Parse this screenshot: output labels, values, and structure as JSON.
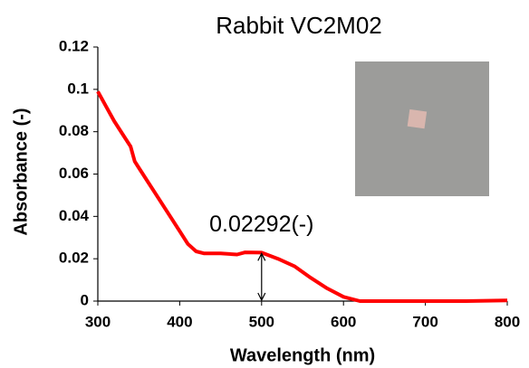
{
  "chart_data": {
    "type": "line",
    "title": "Rabbit VC2M02",
    "x_label": "Wavelength (nm)",
    "y_label": "Absorbance (-)",
    "x": [
      300,
      310,
      320,
      330,
      340,
      345,
      350,
      360,
      370,
      380,
      390,
      400,
      410,
      420,
      430,
      450,
      470,
      480,
      500,
      520,
      540,
      560,
      580,
      600,
      620,
      650,
      700,
      750,
      800
    ],
    "values": [
      0.099,
      0.092,
      0.085,
      0.079,
      0.073,
      0.066,
      0.063,
      0.057,
      0.051,
      0.045,
      0.039,
      0.033,
      0.027,
      0.0235,
      0.0225,
      0.0225,
      0.022,
      0.023,
      0.0229,
      0.02,
      0.0165,
      0.011,
      0.006,
      0.002,
      0,
      0,
      0,
      0,
      0.0003
    ],
    "color": "#ff0000",
    "xlim": [
      300,
      800
    ],
    "xticks": [
      300,
      400,
      500,
      600,
      700,
      800
    ],
    "ylim": [
      0,
      0.12
    ],
    "yticks": [
      0,
      0.02,
      0.04,
      0.06,
      0.08,
      0.1,
      0.12
    ],
    "grid": false,
    "annotation": {
      "label": "0.02292(-)",
      "value": 0.02292,
      "x": 500
    }
  }
}
